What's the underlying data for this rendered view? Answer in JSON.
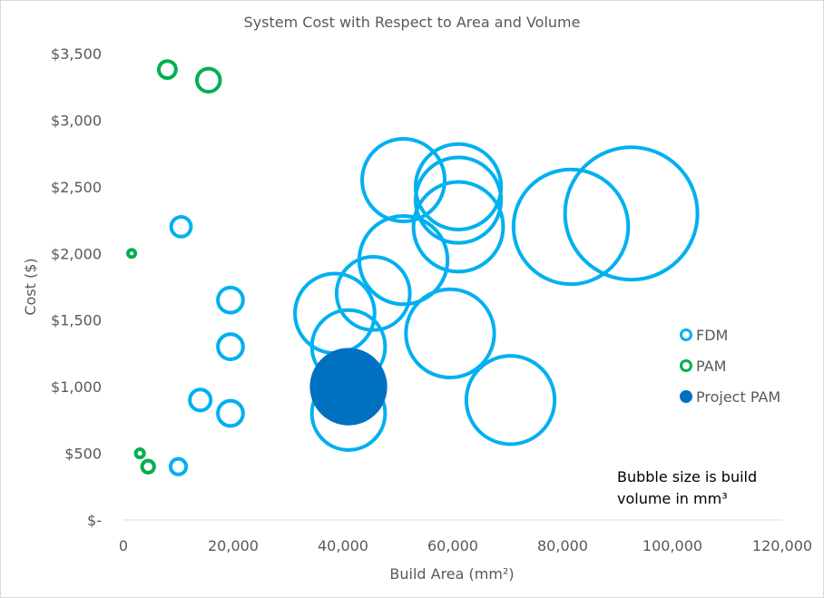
{
  "chart_data": {
    "type": "scatter",
    "subtype": "bubble",
    "title": "System Cost with Respect to Area and Volume",
    "xlabel": "Build Area (mm²)",
    "ylabel": "Cost ($)",
    "xlim": [
      0,
      120000
    ],
    "ylim": [
      0,
      3500
    ],
    "x_ticks": [
      "0",
      "20,000",
      "40,000",
      "60,000",
      "80,000",
      "100,000",
      "120,000"
    ],
    "y_ticks": [
      "$-",
      "$500",
      "$1,000",
      "$1,500",
      "$2,000",
      "$2,500",
      "$3,000",
      "$3,500"
    ],
    "grid": false,
    "legend_position": "right",
    "annotation": "Bubble size is build volume in mm³",
    "annotation_lines": [
      "Bubble size is build",
      "volume in mm³"
    ],
    "series": [
      {
        "name": "FDM",
        "color": "#00b0f0",
        "filled": false,
        "points": [
          {
            "x": 10500,
            "y": 2200,
            "size": 1.6
          },
          {
            "x": 19500,
            "y": 1650,
            "size": 2.6
          },
          {
            "x": 19500,
            "y": 1300,
            "size": 2.6
          },
          {
            "x": 14000,
            "y": 900,
            "size": 1.8
          },
          {
            "x": 19500,
            "y": 800,
            "size": 2.6
          },
          {
            "x": 10000,
            "y": 400,
            "size": 1.0
          },
          {
            "x": 38500,
            "y": 1550,
            "size": 26
          },
          {
            "x": 41000,
            "y": 1300,
            "size": 22
          },
          {
            "x": 41000,
            "y": 800,
            "size": 22
          },
          {
            "x": 45500,
            "y": 1700,
            "size": 22
          },
          {
            "x": 51000,
            "y": 1950,
            "size": 32
          },
          {
            "x": 51000,
            "y": 2550,
            "size": 28
          },
          {
            "x": 59500,
            "y": 1400,
            "size": 32
          },
          {
            "x": 61000,
            "y": 2500,
            "size": 30
          },
          {
            "x": 61000,
            "y": 2400,
            "size": 30
          },
          {
            "x": 61000,
            "y": 2200,
            "size": 33
          },
          {
            "x": 70500,
            "y": 900,
            "size": 32
          },
          {
            "x": 81500,
            "y": 2200,
            "size": 54
          },
          {
            "x": 92500,
            "y": 2300,
            "size": 72
          }
        ]
      },
      {
        "name": "PAM",
        "color": "#00b050",
        "filled": false,
        "points": [
          {
            "x": 1500,
            "y": 2000,
            "size": 0.12
          },
          {
            "x": 8000,
            "y": 3380,
            "size": 1.2
          },
          {
            "x": 15500,
            "y": 3300,
            "size": 2.2
          },
          {
            "x": 3000,
            "y": 500,
            "size": 0.28
          },
          {
            "x": 4500,
            "y": 400,
            "size": 0.6
          }
        ]
      },
      {
        "name": "Project PAM",
        "color": "#0070c0",
        "filled": true,
        "points": [
          {
            "x": 41000,
            "y": 1000,
            "size": 24
          }
        ]
      }
    ]
  },
  "colors": {
    "text": "#595959",
    "axis": "#d9d9d9",
    "border": "#d9d9d9"
  }
}
